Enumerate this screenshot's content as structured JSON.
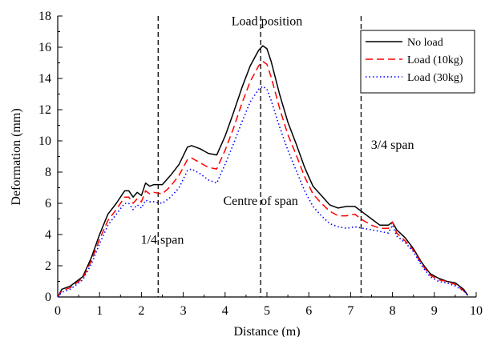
{
  "chart_data": {
    "type": "line",
    "title": "",
    "xlabel": "Distance (m)",
    "ylabel": "Deformation (mm)",
    "xlim": [
      0,
      10
    ],
    "ylim": [
      0,
      18
    ],
    "xticks": [
      "0",
      "1",
      "2",
      "3",
      "4",
      "5",
      "6",
      "7",
      "8",
      "9",
      "10"
    ],
    "yticks": [
      "0",
      "2",
      "4",
      "6",
      "8",
      "10",
      "12",
      "14",
      "16",
      "18"
    ],
    "grid": false,
    "legend_position": "top-right",
    "series": [
      {
        "name": "No load",
        "color": "#000000",
        "style": "solid",
        "x": [
          0,
          0.1,
          0.3,
          0.6,
          0.8,
          1.0,
          1.2,
          1.4,
          1.6,
          1.7,
          1.8,
          1.9,
          2.0,
          2.1,
          2.2,
          2.3,
          2.5,
          2.7,
          2.9,
          3.1,
          3.2,
          3.4,
          3.6,
          3.8,
          4.0,
          4.2,
          4.4,
          4.6,
          4.8,
          4.9,
          5.0,
          5.1,
          5.3,
          5.5,
          5.7,
          5.9,
          6.1,
          6.3,
          6.5,
          6.7,
          6.9,
          7.1,
          7.3,
          7.5,
          7.7,
          7.9,
          8.0,
          8.1,
          8.3,
          8.5,
          8.7,
          8.9,
          9.1,
          9.3,
          9.5,
          9.7,
          9.8
        ],
        "y": [
          0,
          0.5,
          0.7,
          1.3,
          2.5,
          4.0,
          5.3,
          6.0,
          6.8,
          6.8,
          6.4,
          6.7,
          6.5,
          7.3,
          7.1,
          7.2,
          7.2,
          7.8,
          8.5,
          9.6,
          9.7,
          9.5,
          9.2,
          9.1,
          10.3,
          11.8,
          13.4,
          14.8,
          15.8,
          16.1,
          15.9,
          15.1,
          13.0,
          11.2,
          9.8,
          8.3,
          7.1,
          6.5,
          5.9,
          5.7,
          5.8,
          5.8,
          5.4,
          5.0,
          4.6,
          4.6,
          4.8,
          4.3,
          3.8,
          3.1,
          2.2,
          1.5,
          1.2,
          1.0,
          0.9,
          0.5,
          0.1
        ]
      },
      {
        "name": "Load (10kg)",
        "color": "#ff0000",
        "style": "dashed",
        "x": [
          0,
          0.1,
          0.3,
          0.6,
          0.8,
          1.0,
          1.2,
          1.4,
          1.6,
          1.7,
          1.8,
          1.9,
          2.0,
          2.1,
          2.2,
          2.3,
          2.5,
          2.7,
          2.9,
          3.1,
          3.2,
          3.4,
          3.6,
          3.8,
          4.0,
          4.2,
          4.4,
          4.6,
          4.8,
          4.9,
          5.0,
          5.1,
          5.3,
          5.5,
          5.7,
          5.9,
          6.1,
          6.3,
          6.5,
          6.7,
          6.9,
          7.1,
          7.3,
          7.5,
          7.7,
          7.9,
          8.0,
          8.1,
          8.3,
          8.5,
          8.7,
          8.9,
          9.1,
          9.3,
          9.5,
          9.7,
          9.8
        ],
        "y": [
          0,
          0.4,
          0.6,
          1.2,
          2.3,
          3.7,
          4.9,
          5.6,
          6.4,
          6.4,
          6.0,
          6.3,
          6.1,
          6.8,
          6.6,
          6.7,
          6.6,
          7.1,
          7.8,
          8.8,
          8.9,
          8.6,
          8.3,
          8.2,
          9.4,
          10.8,
          12.4,
          13.8,
          14.8,
          15.1,
          14.9,
          14.1,
          12.1,
          10.4,
          9.1,
          7.7,
          6.6,
          6.0,
          5.5,
          5.2,
          5.2,
          5.3,
          4.9,
          4.6,
          4.4,
          4.4,
          4.8,
          4.1,
          3.6,
          3.0,
          2.1,
          1.4,
          1.1,
          1.0,
          0.8,
          0.4,
          0.1
        ]
      },
      {
        "name": "Load (30kg)",
        "color": "#0000ff",
        "style": "dotted",
        "x": [
          0,
          0.1,
          0.3,
          0.6,
          0.8,
          1.0,
          1.2,
          1.4,
          1.6,
          1.7,
          1.8,
          1.9,
          2.0,
          2.1,
          2.2,
          2.3,
          2.5,
          2.7,
          2.9,
          3.1,
          3.2,
          3.4,
          3.6,
          3.8,
          4.0,
          4.2,
          4.4,
          4.6,
          4.8,
          4.9,
          5.0,
          5.1,
          5.3,
          5.5,
          5.7,
          5.9,
          6.1,
          6.3,
          6.5,
          6.7,
          6.9,
          7.1,
          7.3,
          7.5,
          7.7,
          7.9,
          8.0,
          8.1,
          8.3,
          8.5,
          8.7,
          8.9,
          9.1,
          9.3,
          9.5,
          9.7,
          9.8
        ],
        "y": [
          0,
          0.3,
          0.5,
          1.1,
          2.1,
          3.4,
          4.6,
          5.3,
          6.0,
          6.0,
          5.6,
          5.9,
          5.7,
          6.2,
          6.1,
          6.1,
          6.0,
          6.4,
          7.0,
          8.1,
          8.2,
          7.9,
          7.5,
          7.3,
          8.5,
          9.8,
          11.2,
          12.5,
          13.3,
          13.5,
          13.3,
          12.6,
          10.9,
          9.4,
          8.1,
          6.8,
          5.8,
          5.2,
          4.7,
          4.5,
          4.4,
          4.5,
          4.4,
          4.3,
          4.2,
          4.1,
          4.6,
          3.9,
          3.5,
          2.9,
          2.0,
          1.3,
          1.0,
          0.9,
          0.7,
          0.4,
          0.1
        ]
      }
    ],
    "vlines": [
      {
        "x": 2.4,
        "style": "dashed"
      },
      {
        "x": 4.85,
        "style": "dashed"
      },
      {
        "x": 7.25,
        "style": "dashed"
      }
    ],
    "annotations": [
      {
        "text": "Load position",
        "x": 5.0,
        "y": 17.4
      },
      {
        "text": "3/4 span",
        "x": 8.0,
        "y": 9.5
      },
      {
        "text": "Centre of span",
        "x": 4.85,
        "y": 5.9
      },
      {
        "text": "1/4 span",
        "x": 2.5,
        "y": 3.4
      }
    ]
  }
}
